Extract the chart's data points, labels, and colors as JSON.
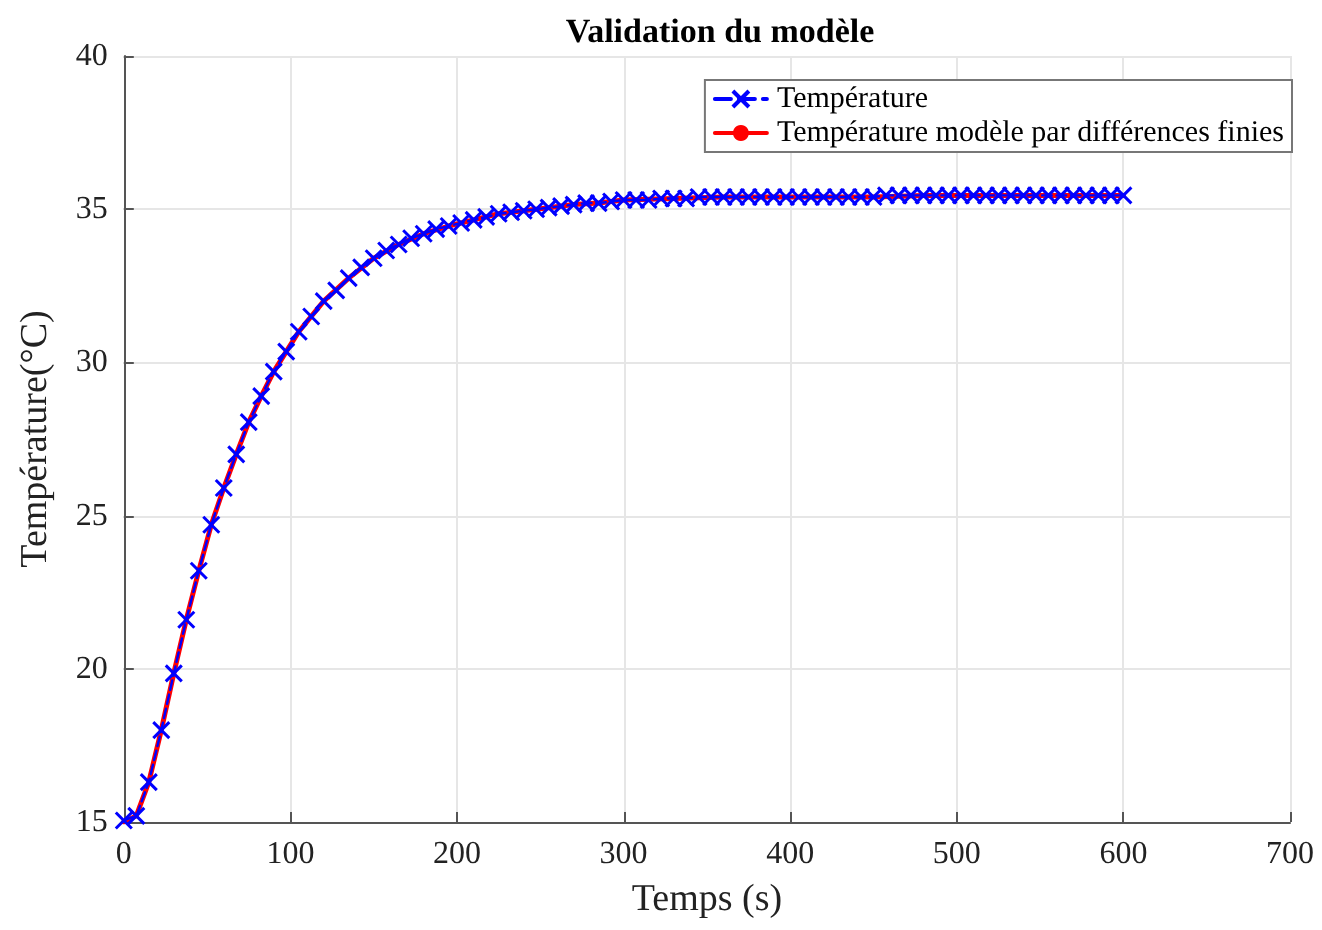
{
  "chart_data": {
    "type": "line",
    "title": "Validation du modèle",
    "xlabel": "Temps (s)",
    "ylabel": "Température(°C)",
    "xlim": [
      0,
      700
    ],
    "xticks": [
      0,
      100,
      200,
      300,
      400,
      500,
      600,
      700
    ],
    "ylim": [
      15,
      40
    ],
    "yticks": [
      15,
      20,
      25,
      30,
      35,
      40
    ],
    "grid": true,
    "legend": "top right",
    "series": [
      {
        "name": "Température",
        "color": "#0000ff",
        "marker": "cross",
        "line_style": "dashed",
        "x": [
          0,
          7.5,
          15,
          22.5,
          30,
          37.5,
          45,
          52.5,
          60,
          67.5,
          75,
          82.5,
          90,
          97.5,
          105,
          112.5,
          120,
          127.5,
          135,
          142.5,
          150,
          157.5,
          165,
          172.5,
          180,
          187.5,
          195,
          202.5,
          210,
          217.5,
          225,
          232.5,
          240,
          247.5,
          255,
          262.5,
          270,
          277.5,
          285,
          292.5,
          300,
          307.5,
          315,
          322.5,
          330,
          337.5,
          345,
          352.5,
          360,
          367.5,
          375,
          382.5,
          390,
          397.5,
          405,
          412.5,
          420,
          427.5,
          435,
          442.5,
          450,
          457.5,
          465,
          472.5,
          480,
          487.5,
          495,
          502.5,
          510,
          517.5,
          525,
          532.5,
          540,
          547.5,
          555,
          562.5,
          570,
          577.5,
          585,
          592.5,
          600
        ],
        "values": [
          15.05,
          15.2,
          16.3,
          18.0,
          19.85,
          21.6,
          23.2,
          24.7,
          25.9,
          27.0,
          28.05,
          28.9,
          29.7,
          30.35,
          31.0,
          31.5,
          32.0,
          32.35,
          32.75,
          33.1,
          33.4,
          33.65,
          33.85,
          34.05,
          34.2,
          34.35,
          34.45,
          34.55,
          34.65,
          34.75,
          34.85,
          34.9,
          34.95,
          35.0,
          35.05,
          35.1,
          35.15,
          35.2,
          35.2,
          35.25,
          35.3,
          35.3,
          35.3,
          35.35,
          35.35,
          35.35,
          35.4,
          35.4,
          35.4,
          35.4,
          35.4,
          35.4,
          35.4,
          35.4,
          35.4,
          35.4,
          35.4,
          35.4,
          35.4,
          35.4,
          35.4,
          35.45,
          35.45,
          35.45,
          35.45,
          35.45,
          35.45,
          35.45,
          35.45,
          35.45,
          35.45,
          35.45,
          35.45,
          35.45,
          35.45,
          35.45,
          35.45,
          35.45,
          35.45,
          35.45,
          35.45
        ]
      },
      {
        "name": "Température modèle par différences finies",
        "color": "#ff0000",
        "marker": "none",
        "line_style": "solid",
        "x": [
          0,
          7.5,
          15,
          22.5,
          30,
          37.5,
          45,
          52.5,
          60,
          67.5,
          75,
          82.5,
          90,
          97.5,
          105,
          120,
          135,
          150,
          165,
          180,
          195,
          210,
          225,
          240,
          255,
          270,
          285,
          300,
          330,
          360,
          390,
          420,
          450,
          480,
          510,
          540,
          570,
          600
        ],
        "values": [
          15.0,
          15.2,
          16.3,
          18.0,
          19.85,
          21.6,
          23.2,
          24.7,
          25.9,
          27.0,
          28.05,
          28.9,
          29.7,
          30.35,
          31.0,
          32.0,
          32.75,
          33.4,
          33.85,
          34.2,
          34.45,
          34.65,
          34.85,
          34.95,
          35.05,
          35.15,
          35.2,
          35.3,
          35.35,
          35.4,
          35.4,
          35.4,
          35.4,
          35.45,
          35.45,
          35.45,
          35.45,
          35.45
        ]
      }
    ]
  }
}
